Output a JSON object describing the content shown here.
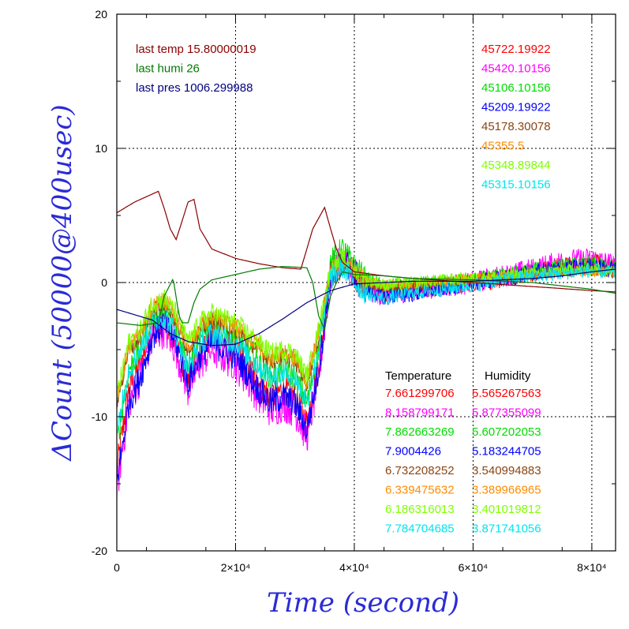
{
  "chart_data": {
    "type": "line",
    "title": "",
    "xlabel": "Time (second)",
    "ylabel": "ΔCount (50000@400usec)",
    "xlim": [
      0,
      84000
    ],
    "ylim": [
      -20,
      20
    ],
    "grid": true,
    "x_ticks": [
      {
        "value": 0,
        "label": "0"
      },
      {
        "value": 20000,
        "label": "2×10⁴"
      },
      {
        "value": 40000,
        "label": "4×10⁴"
      },
      {
        "value": 60000,
        "label": "6×10⁴"
      },
      {
        "value": 80000,
        "label": "8×10⁴"
      }
    ],
    "y_ticks": [
      {
        "value": -20,
        "label": "-20"
      },
      {
        "value": -10,
        "label": "-10"
      },
      {
        "value": 0,
        "label": "0"
      },
      {
        "value": 10,
        "label": "10"
      },
      {
        "value": 20,
        "label": "20"
      }
    ],
    "annotations": {
      "last": [
        {
          "text": "last temp 15.80000019",
          "color": "#8b0000"
        },
        {
          "text": "last humi 26",
          "color": "#007a00"
        },
        {
          "text": "last pres 1006.299988",
          "color": "#000080"
        }
      ],
      "right_values": [
        {
          "text": "45722.19922",
          "color": "#ff0000"
        },
        {
          "text": "45420.10156",
          "color": "#ff00ff"
        },
        {
          "text": "45106.10156",
          "color": "#00dd00"
        },
        {
          "text": "45209.19922",
          "color": "#0000ff"
        },
        {
          "text": "45178.30078",
          "color": "#8b4513"
        },
        {
          "text": "45355.5",
          "color": "#ff8c00"
        },
        {
          "text": "45348.89844",
          "color": "#7fff00"
        },
        {
          "text": "45315.10156",
          "color": "#00e5ee"
        }
      ],
      "coef_header": {
        "temperature": "Temperature",
        "humidity": "Humidity"
      },
      "coefficients": [
        {
          "temp": "7.661299706",
          "humi": "5.565267563",
          "color": "#ff0000"
        },
        {
          "temp": "8.158799171",
          "humi": "5.877355099",
          "color": "#ff00ff"
        },
        {
          "temp": "7.862663269",
          "humi": "5.607202053",
          "color": "#00dd00"
        },
        {
          "temp": "7.9004426",
          "humi": "5.183244705",
          "color": "#0000ff"
        },
        {
          "temp": "6.732208252",
          "humi": "3.540994883",
          "color": "#8b4513"
        },
        {
          "temp": "6.339475632",
          "humi": "3.389966965",
          "color": "#ff8c00"
        },
        {
          "temp": "6.186316013",
          "humi": "3.401019812",
          "color": "#7fff00"
        },
        {
          "temp": "7.784704685",
          "humi": "3.871741056",
          "color": "#00e5ee"
        }
      ]
    },
    "series": [
      {
        "color": "#ff0000",
        "noise": 1.2,
        "x": [
          0,
          2000,
          4000,
          6000,
          8000,
          10000,
          12000,
          14000,
          16000,
          20000,
          24000,
          26000,
          28000,
          30000,
          32000,
          34000,
          36000,
          38000,
          40000,
          42000,
          45000,
          50000,
          55000,
          60000,
          65000,
          70000,
          75000,
          80000,
          84000
        ],
        "values": [
          -14,
          -8,
          -6,
          -3.5,
          -3,
          -4.5,
          -7,
          -5,
          -4,
          -5,
          -7.5,
          -8.5,
          -8,
          -8.5,
          -10.5,
          -6,
          0.5,
          1.5,
          0.5,
          -0.5,
          -0.8,
          -0.5,
          -0.3,
          0,
          0.3,
          0.8,
          1.2,
          1.5,
          1
        ]
      },
      {
        "color": "#ff00ff",
        "noise": 1.4,
        "x": [
          0,
          2000,
          4000,
          6000,
          8000,
          10000,
          12000,
          14000,
          16000,
          20000,
          24000,
          26000,
          28000,
          30000,
          32000,
          34000,
          36000,
          38000,
          40000,
          42000,
          45000,
          50000,
          55000,
          60000,
          65000,
          70000,
          75000,
          80000,
          84000
        ],
        "values": [
          -15.5,
          -9,
          -7,
          -4,
          -3.5,
          -5,
          -8,
          -6,
          -5,
          -6,
          -8.5,
          -9.5,
          -9,
          -9.5,
          -11.5,
          -7,
          0.5,
          1.8,
          0.8,
          -0.5,
          -1,
          -0.5,
          -0.3,
          0,
          0.5,
          1,
          1.6,
          1.8,
          1.3
        ]
      },
      {
        "color": "#00dd00",
        "noise": 1.0,
        "x": [
          0,
          2000,
          4000,
          6000,
          8000,
          10000,
          12000,
          14000,
          16000,
          20000,
          24000,
          26000,
          28000,
          30000,
          32000,
          34000,
          36000,
          38000,
          40000,
          42000,
          45000,
          50000,
          55000,
          60000,
          65000,
          70000,
          75000,
          80000,
          84000
        ],
        "values": [
          -12,
          -6.5,
          -5,
          -2.5,
          -2,
          -3.5,
          -6,
          -4,
          -3,
          -4,
          -6,
          -7,
          -6.5,
          -7,
          -9,
          -5,
          1.5,
          2.5,
          1.2,
          0.2,
          -0.3,
          -0.2,
          0,
          0.2,
          0.5,
          0.9,
          1.2,
          1.4,
          1
        ]
      },
      {
        "color": "#0000ff",
        "noise": 1.1,
        "x": [
          0,
          2000,
          4000,
          6000,
          8000,
          10000,
          12000,
          14000,
          16000,
          20000,
          24000,
          26000,
          28000,
          30000,
          32000,
          34000,
          36000,
          38000,
          40000,
          42000,
          45000,
          50000,
          55000,
          60000,
          65000,
          70000,
          75000,
          80000,
          84000
        ],
        "values": [
          -15,
          -9,
          -7,
          -4,
          -3,
          -4.5,
          -7.5,
          -5.5,
          -4.5,
          -5.5,
          -8,
          -9,
          -8.5,
          -9,
          -11,
          -6.5,
          0.5,
          1.8,
          0.6,
          -0.5,
          -1,
          -0.8,
          -0.4,
          0,
          0.3,
          0.7,
          1,
          1.2,
          0.9
        ]
      },
      {
        "color": "#8b4513",
        "noise": 0.7,
        "x": [
          0,
          2000,
          4000,
          6000,
          8000,
          10000,
          12000,
          14000,
          16000,
          20000,
          24000,
          26000,
          28000,
          30000,
          32000,
          34000,
          36000,
          38000,
          40000,
          42000,
          45000,
          50000,
          55000,
          60000,
          65000,
          70000,
          75000,
          80000,
          84000
        ],
        "values": [
          -9,
          -5,
          -4,
          -2,
          -1.5,
          -2.8,
          -5,
          -3.5,
          -2.8,
          -3.5,
          -5,
          -5.8,
          -5.5,
          -5.8,
          -7.5,
          -4,
          0.8,
          1.5,
          0.8,
          0,
          -0.3,
          -0.2,
          0,
          0.2,
          0.4,
          0.6,
          0.8,
          1,
          0.8
        ]
      },
      {
        "color": "#ff8c00",
        "noise": 0.7,
        "x": [
          0,
          2000,
          4000,
          6000,
          8000,
          10000,
          12000,
          14000,
          16000,
          20000,
          24000,
          26000,
          28000,
          30000,
          32000,
          34000,
          36000,
          38000,
          40000,
          42000,
          45000,
          50000,
          55000,
          60000,
          65000,
          70000,
          75000,
          80000,
          84000
        ],
        "values": [
          -8.5,
          -4.8,
          -3.8,
          -1.8,
          -1.3,
          -2.6,
          -4.8,
          -3.3,
          -2.6,
          -3.3,
          -4.8,
          -5.6,
          -5.3,
          -5.6,
          -7.3,
          -3.8,
          0.9,
          1.6,
          0.9,
          0.1,
          -0.2,
          -0.1,
          0.1,
          0.3,
          0.4,
          0.6,
          0.8,
          0.9,
          0.7
        ]
      },
      {
        "color": "#7fff00",
        "noise": 0.8,
        "x": [
          0,
          2000,
          4000,
          6000,
          8000,
          10000,
          12000,
          14000,
          16000,
          20000,
          24000,
          26000,
          28000,
          30000,
          32000,
          34000,
          36000,
          38000,
          40000,
          42000,
          45000,
          50000,
          55000,
          60000,
          65000,
          70000,
          75000,
          80000,
          84000
        ],
        "values": [
          -8.5,
          -4.5,
          -3.5,
          -1.5,
          -1.2,
          -2.3,
          -4.5,
          -3,
          -2.3,
          -3,
          -4.5,
          -5.3,
          -5,
          -5.3,
          -7,
          -3.5,
          1,
          1.8,
          1,
          0.2,
          -0.2,
          0,
          0.2,
          0.3,
          0.5,
          0.7,
          0.9,
          1,
          0.8
        ]
      },
      {
        "color": "#00e5ee",
        "noise": 0.9,
        "x": [
          0,
          2000,
          4000,
          6000,
          8000,
          10000,
          12000,
          14000,
          16000,
          20000,
          24000,
          26000,
          28000,
          30000,
          32000,
          34000,
          36000,
          38000,
          40000,
          42000,
          45000,
          50000,
          55000,
          60000,
          65000,
          70000,
          75000,
          80000,
          84000
        ],
        "values": [
          -11,
          -6.5,
          -5,
          -3,
          -2.5,
          -3.8,
          -6.5,
          -4.5,
          -3.8,
          -4.5,
          -6.3,
          -7,
          -6.8,
          -7,
          -9,
          -5,
          0.3,
          1.2,
          0,
          -0.8,
          -1.2,
          -0.8,
          -0.5,
          -0.2,
          0.2,
          0.5,
          0.7,
          0.9,
          0.7
        ]
      },
      {
        "color": "#8b0000",
        "noise": 0,
        "x": [
          0,
          3000,
          6000,
          7000,
          8000,
          9000,
          10000,
          12000,
          13000,
          14000,
          16000,
          20000,
          24000,
          28000,
          31000,
          33000,
          35000,
          36000,
          37000,
          38000,
          40000,
          45000,
          50000,
          60000,
          70000,
          80000,
          84000
        ],
        "values": [
          5.2,
          6,
          6.6,
          6.8,
          5.5,
          4,
          3.2,
          6,
          6.2,
          4,
          2.5,
          1.8,
          1.4,
          1.1,
          1,
          4,
          5.6,
          4,
          2.5,
          1.5,
          0.8,
          0.5,
          0.3,
          0,
          -0.3,
          -0.6,
          -0.7
        ]
      },
      {
        "color": "#007a00",
        "noise": 0,
        "x": [
          0,
          4000,
          7000,
          8000,
          9500,
          10500,
          11000,
          12000,
          13000,
          14000,
          16000,
          20000,
          24000,
          28000,
          32000,
          33000,
          34000,
          35000,
          36000,
          37000,
          38000,
          40000,
          45000,
          50000,
          60000,
          70000,
          80000,
          84000
        ],
        "values": [
          -3,
          -3.2,
          -3,
          -1,
          0.3,
          -2.5,
          -3,
          -3,
          -1.5,
          -0.5,
          0.2,
          0.6,
          1,
          1.2,
          1.1,
          0,
          -2.5,
          -3.5,
          -1,
          0,
          0.8,
          0.6,
          0.5,
          0.3,
          0.2,
          0,
          -0.5,
          -0.8
        ]
      },
      {
        "color": "#000080",
        "noise": 0,
        "x": [
          0,
          3000,
          6000,
          9000,
          12000,
          16000,
          20000,
          24000,
          28000,
          32000,
          36000,
          40000,
          45000,
          50000,
          55000,
          60000,
          65000,
          70000,
          75000,
          80000,
          84000
        ],
        "values": [
          -2,
          -2.4,
          -2.8,
          -3.8,
          -4.4,
          -4.7,
          -4.6,
          -3.8,
          -2.7,
          -1.5,
          -0.6,
          -0.1,
          0,
          0.1,
          0.1,
          0.1,
          0.2,
          0.3,
          0.5,
          0.8,
          1
        ]
      }
    ]
  }
}
